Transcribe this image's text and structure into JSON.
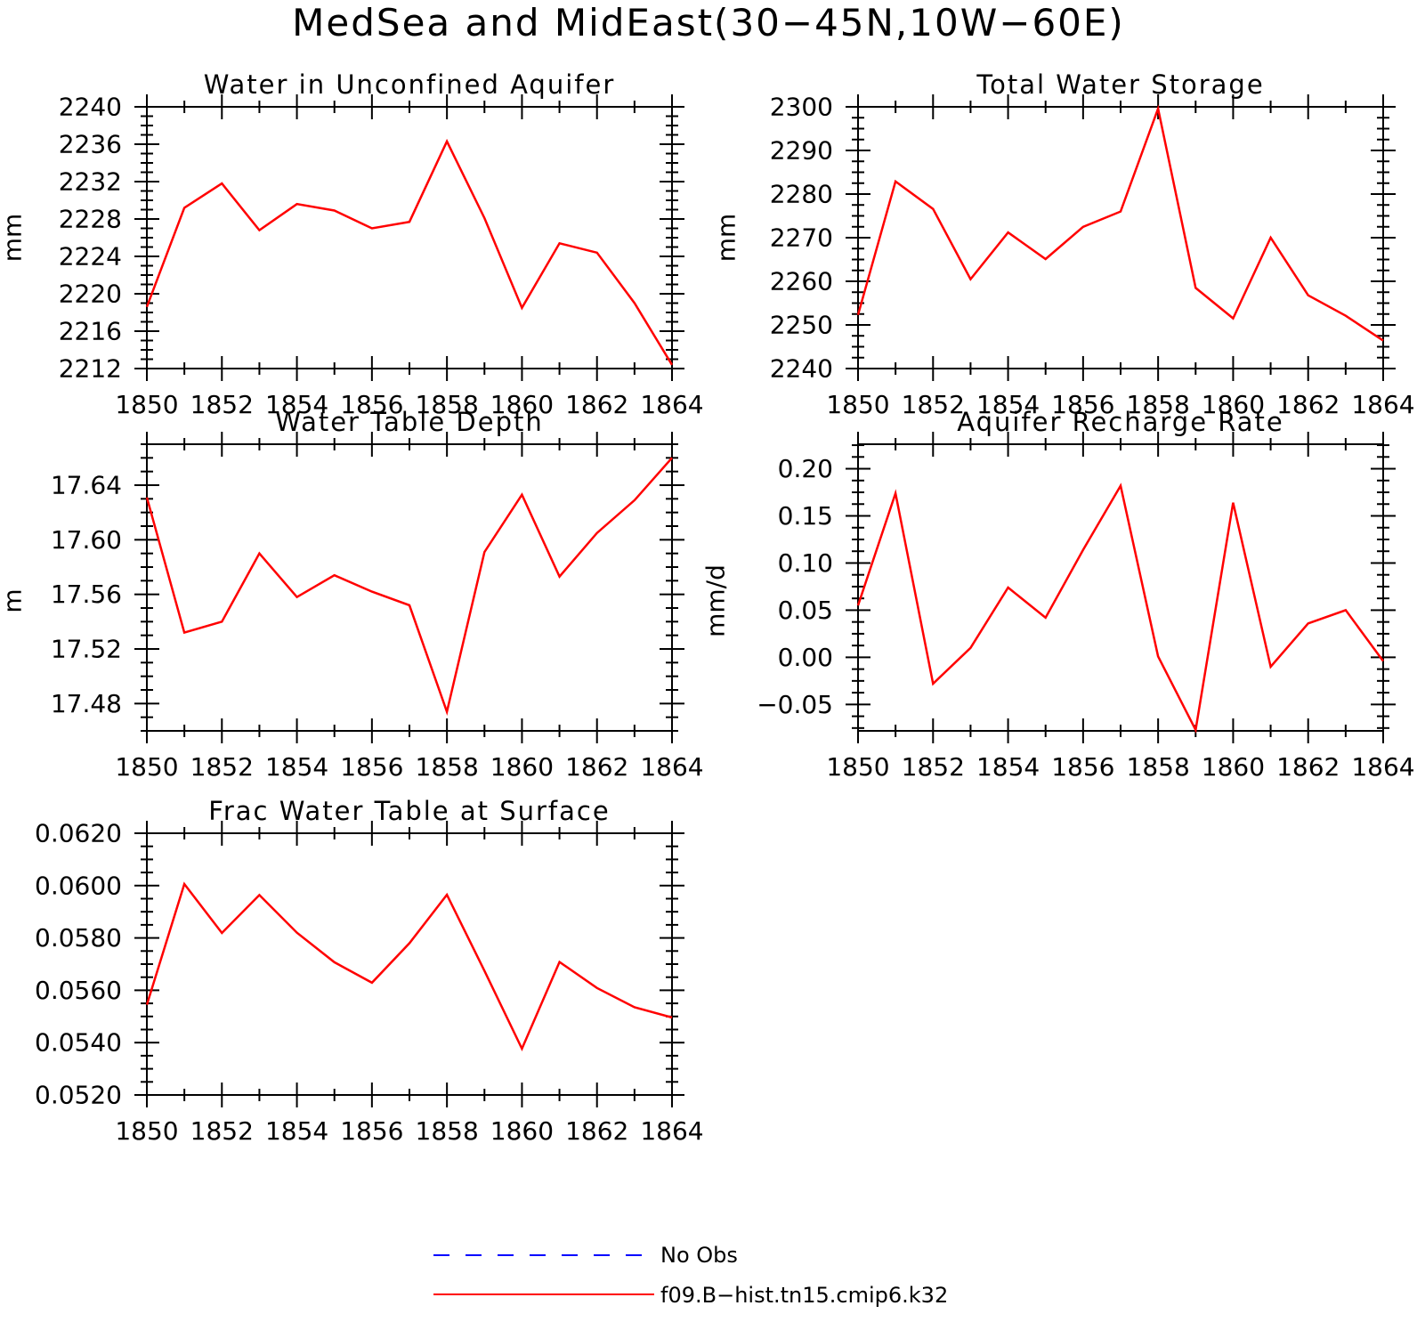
{
  "figure": {
    "title": "MedSea and MidEast(30−45N,10W−60E)"
  },
  "legend": {
    "items": [
      {
        "label": "No Obs",
        "color": "#0000ff",
        "dashed": true
      },
      {
        "label": "f09.B−hist.tn15.cmip6.k32",
        "color": "#ff0000",
        "dashed": false
      }
    ]
  },
  "chart_data": [
    {
      "type": "line",
      "title": "Water in Unconfined Aquifer",
      "ylabel": "mm",
      "xlim": [
        1850,
        1864
      ],
      "ylim": [
        2212,
        2240
      ],
      "xticks": [
        "1850",
        "1852",
        "1854",
        "1856",
        "1858",
        "1860",
        "1862",
        "1864"
      ],
      "yticks": [
        "2212",
        "2216",
        "2220",
        "2224",
        "2228",
        "2232",
        "2236",
        "2240"
      ],
      "x": [
        1850,
        1851,
        1852,
        1853,
        1854,
        1855,
        1856,
        1857,
        1858,
        1859,
        1860,
        1861,
        1862,
        1863,
        1864
      ],
      "series": [
        {
          "color": "#ff0000",
          "values": [
            2218.6,
            2229.2,
            2231.8,
            2226.8,
            2229.6,
            2228.9,
            2227.0,
            2227.7,
            2236.3,
            2228.1,
            2218.5,
            2225.4,
            2224.4,
            2219.0,
            2212.4
          ]
        }
      ]
    },
    {
      "type": "line",
      "title": "Total Water Storage",
      "ylabel": "mm",
      "xlim": [
        1850,
        1864
      ],
      "ylim": [
        2240,
        2300
      ],
      "xticks": [
        "1850",
        "1852",
        "1854",
        "1856",
        "1858",
        "1860",
        "1862",
        "1864"
      ],
      "yticks": [
        "2240",
        "2250",
        "2260",
        "2270",
        "2280",
        "2290",
        "2300"
      ],
      "x": [
        1850,
        1851,
        1852,
        1853,
        1854,
        1855,
        1856,
        1857,
        1858,
        1859,
        1860,
        1861,
        1862,
        1863,
        1864
      ],
      "series": [
        {
          "color": "#ff0000",
          "values": [
            2252.3,
            2282.9,
            2276.6,
            2260.5,
            2271.2,
            2265.1,
            2272.5,
            2276.0,
            2299.6,
            2258.5,
            2251.5,
            2270.0,
            2256.8,
            2252.1,
            2246.4
          ]
        }
      ]
    },
    {
      "type": "line",
      "title": "Water Table Depth",
      "ylabel": "m",
      "xlim": [
        1850,
        1864
      ],
      "ylim": [
        17.46,
        17.67
      ],
      "xticks": [
        "1850",
        "1852",
        "1854",
        "1856",
        "1858",
        "1860",
        "1862",
        "1864"
      ],
      "yticks": [
        "17.48",
        "17.52",
        "17.56",
        "17.60",
        "17.64"
      ],
      "x": [
        1850,
        1851,
        1852,
        1853,
        1854,
        1855,
        1856,
        1857,
        1858,
        1859,
        1860,
        1861,
        1862,
        1863,
        1864
      ],
      "series": [
        {
          "color": "#ff0000",
          "values": [
            17.631,
            17.532,
            17.54,
            17.59,
            17.558,
            17.574,
            17.562,
            17.552,
            17.474,
            17.591,
            17.633,
            17.573,
            17.605,
            17.629,
            17.66
          ]
        }
      ]
    },
    {
      "type": "line",
      "title": "Aquifer Recharge Rate",
      "ylabel": "mm/d",
      "xlim": [
        1850,
        1864
      ],
      "ylim": [
        -0.078,
        0.226
      ],
      "xticks": [
        "1850",
        "1852",
        "1854",
        "1856",
        "1858",
        "1860",
        "1862",
        "1864"
      ],
      "yticks": [
        "−0.05",
        "0.00",
        "0.05",
        "0.10",
        "0.15",
        "0.20"
      ],
      "x": [
        1850,
        1851,
        1852,
        1853,
        1854,
        1855,
        1856,
        1857,
        1858,
        1859,
        1860,
        1861,
        1862,
        1863,
        1864
      ],
      "series": [
        {
          "color": "#ff0000",
          "values": [
            0.055,
            0.174,
            -0.028,
            0.01,
            0.074,
            0.042,
            0.114,
            0.182,
            0.001,
            -0.077,
            0.164,
            -0.01,
            0.036,
            0.05,
            -0.004
          ]
        }
      ]
    },
    {
      "type": "line",
      "title": "Frac Water Table at Surface",
      "ylabel": "",
      "xlim": [
        1850,
        1864
      ],
      "ylim": [
        0.052,
        0.062
      ],
      "xticks": [
        "1850",
        "1852",
        "1854",
        "1856",
        "1858",
        "1860",
        "1862",
        "1864"
      ],
      "yticks": [
        "0.0520",
        "0.0540",
        "0.0560",
        "0.0580",
        "0.0600",
        "0.0620"
      ],
      "x": [
        1850,
        1851,
        1852,
        1853,
        1854,
        1855,
        1856,
        1857,
        1858,
        1859,
        1860,
        1861,
        1862,
        1863,
        1864
      ],
      "series": [
        {
          "color": "#ff0000",
          "values": [
            0.05545,
            0.06006,
            0.05819,
            0.05964,
            0.0582,
            0.05707,
            0.05629,
            0.0578,
            0.05965,
            0.05674,
            0.05377,
            0.05708,
            0.05609,
            0.05535,
            0.05496
          ]
        }
      ]
    }
  ]
}
